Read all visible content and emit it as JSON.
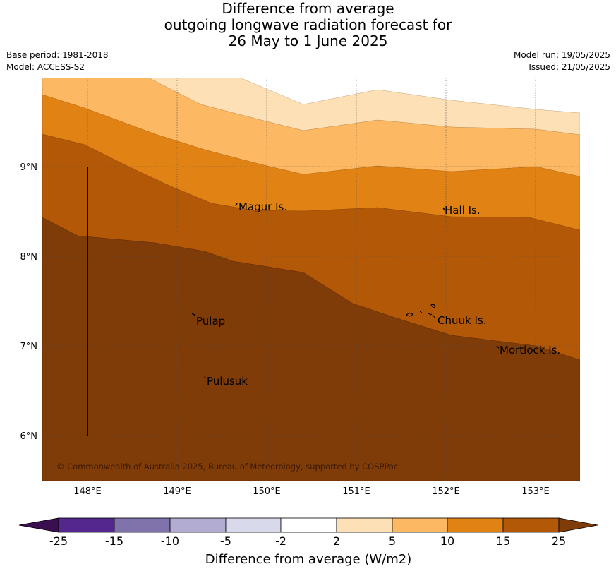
{
  "title": {
    "line1": "Difference from average",
    "line2": "outgoing longwave radiation forecast for",
    "line3": "26 May to 1 June 2025"
  },
  "meta": {
    "base_period": "Base period: 1981-2018",
    "model": "Model: ACCESS-S2",
    "model_run": "Model run: 19/05/2025",
    "issued": "Issued: 21/05/2025"
  },
  "map": {
    "lat_labels": [
      "9°N",
      "8°N",
      "7°N",
      "6°N"
    ],
    "lon_labels": [
      "148°E",
      "149°E",
      "150°E",
      "151°E",
      "152°E",
      "153°E"
    ],
    "place_labels": [
      "Magur Is.",
      "Hall Is.",
      "Pulap",
      "Chuuk Is.",
      "Mortlock Is.",
      "Pulusuk"
    ],
    "copyright": "© Commonwealth of Australia 2025, Bureau of Meteorology, supported by COSPPac"
  },
  "legend": {
    "title": "Difference from average (W/m2)",
    "ticks": [
      "-25",
      "-15",
      "-10",
      "-5",
      "-2",
      "2",
      "5",
      "10",
      "15",
      "25"
    ],
    "colors": [
      "#3b0f4f",
      "#54278f",
      "#8073ac",
      "#b2abd2",
      "#d8daeb",
      "#ffffff",
      "#fee0b6",
      "#fdb863",
      "#e08214",
      "#b35806",
      "#7f3b08"
    ]
  }
}
